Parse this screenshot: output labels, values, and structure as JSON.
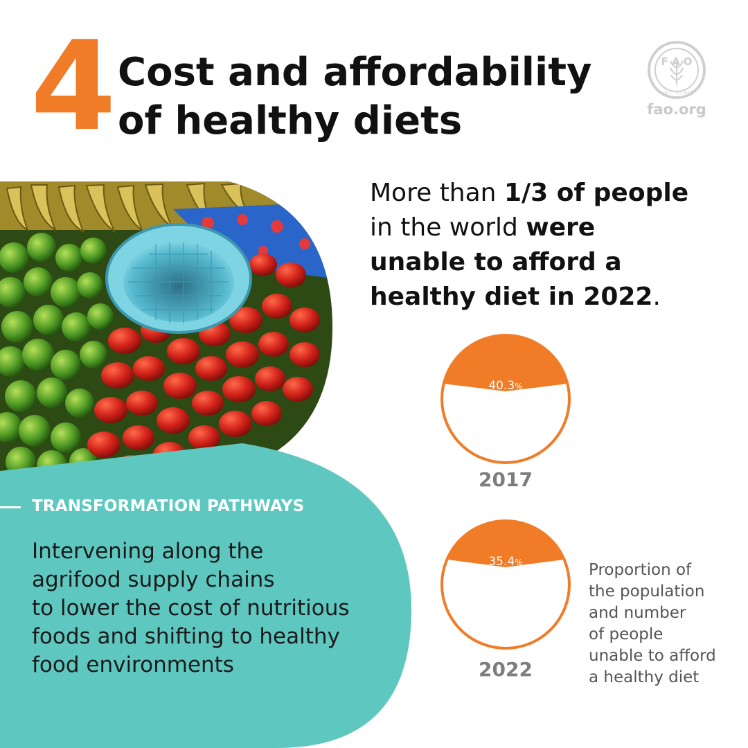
{
  "header": {
    "number": "4",
    "title_lines": [
      "Cost and affordability",
      "of healthy diets"
    ]
  },
  "logo": {
    "initials": "FAO",
    "motto": "FIAT PANIS",
    "site": "fao.org"
  },
  "headline": {
    "line1_plain": "More than ",
    "line1_bold": "1/3 of people",
    "line2_plain": "in the world ",
    "line2_bold": "were",
    "line3_bold": "unable to afford a",
    "line4_bold": "healthy diet in 2022",
    "line4_end": "."
  },
  "pathways": {
    "heading": "TRANSFORMATION PATHWAYS",
    "body_lines": [
      "Intervening along the",
      "agrifood supply chains",
      "to lower the cost of nutritious",
      "foods and shifting to healthy",
      "food environments"
    ]
  },
  "gauges": [
    {
      "year": "2017",
      "value": 40.3,
      "label": "40.3",
      "unit": "%"
    },
    {
      "year": "2022",
      "value": 35.4,
      "label": "35.4",
      "unit": "%"
    }
  ],
  "caption_lines": [
    "Proportion of",
    "the population",
    "and number",
    "of people",
    "unable to afford",
    "a healthy diet"
  ],
  "colors": {
    "accent_orange": "#f07c28",
    "teal": "#5ec8c0",
    "text_dark": "#111111",
    "text_grey": "#7d7d7d"
  }
}
